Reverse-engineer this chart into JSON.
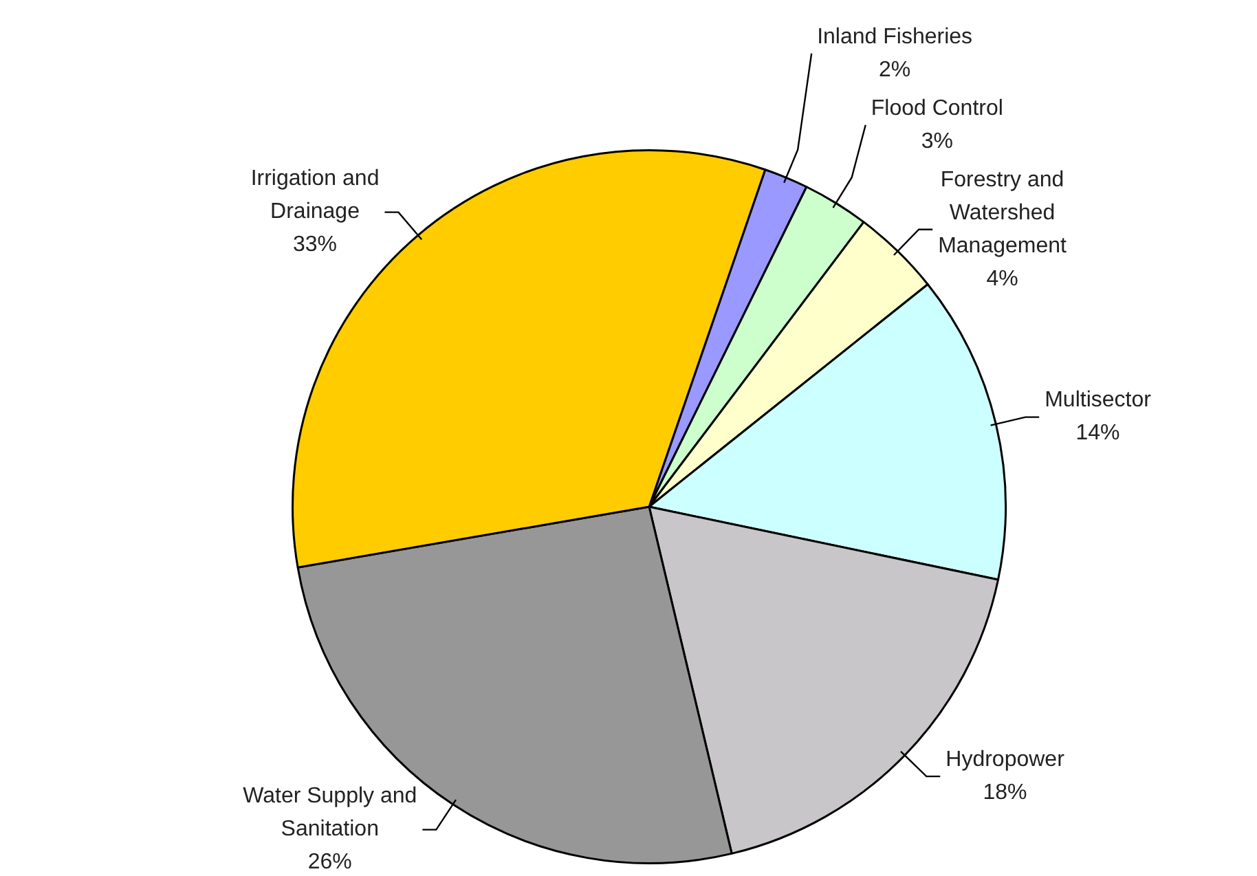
{
  "chart_data": {
    "type": "pie",
    "categories": [
      "Inland Fisheries",
      "Flood Control",
      "Forestry and Watershed Management",
      "Multisector",
      "Hydropower",
      "Water Supply and Sanitation",
      "Irrigation and Drainage"
    ],
    "values": [
      2,
      3,
      4,
      14,
      18,
      26,
      33
    ],
    "value_labels": [
      "2%",
      "3%",
      "4%",
      "14%",
      "18%",
      "26%",
      "33%"
    ],
    "colors": [
      "#9999ff",
      "#ccffcc",
      "#ffffcc",
      "#ccffff",
      "#c8c6c8",
      "#979797",
      "#ffcc00"
    ]
  }
}
